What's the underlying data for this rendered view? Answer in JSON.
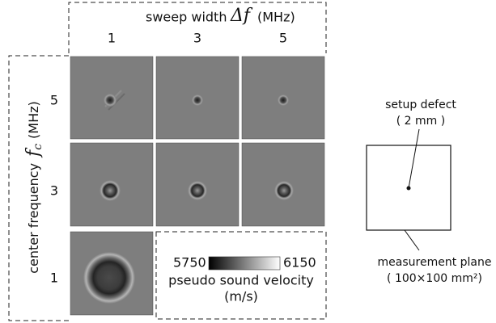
{
  "column_header": {
    "label": "sweep width",
    "symbol": "Δf",
    "unit": "(MHz)",
    "values": [
      "1",
      "3",
      "5"
    ]
  },
  "row_header": {
    "label": "center frequency",
    "symbol": "f",
    "subscript": "c",
    "unit": "(MHz)",
    "values": [
      "5",
      "3",
      "1"
    ]
  },
  "colorbar": {
    "min_label": "5750",
    "max_label": "6150",
    "title": "pseudo sound velocity",
    "unit": "(m/s)"
  },
  "diagram": {
    "defect_label": "setup defect",
    "defect_size": "( 2 mm )",
    "plane_label": "measurement plane",
    "plane_size": "( 100×100 mm²)"
  }
}
